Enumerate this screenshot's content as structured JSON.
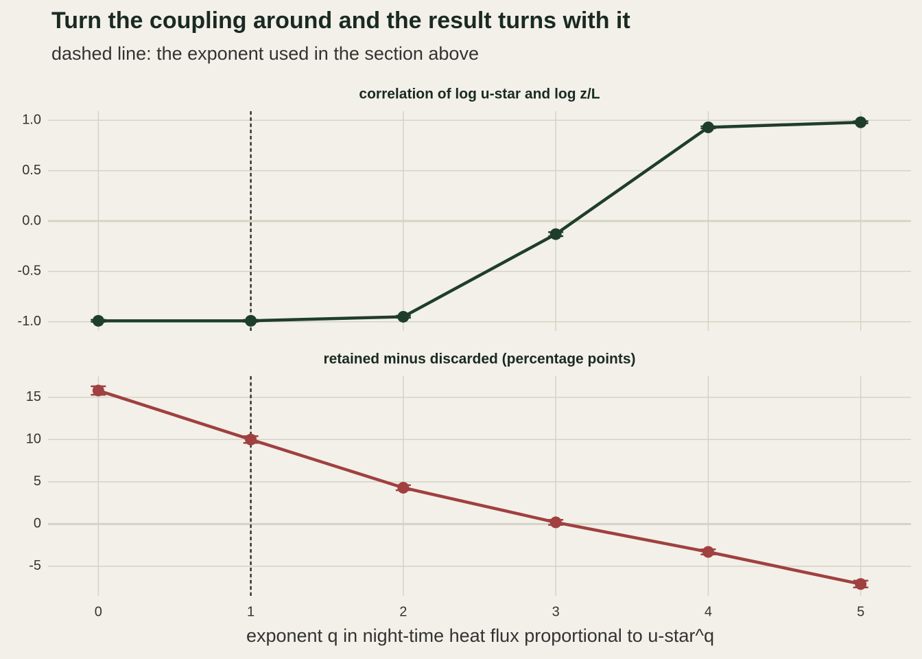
{
  "title": "Turn the coupling around and the result turns with it",
  "subtitle": "dashed line: the exponent used in the section above",
  "x_label": "exponent q in night-time heat flux proportional to u-star^q",
  "chart_data": [
    {
      "type": "line",
      "title": "correlation of log u-star and log z/L",
      "x": [
        0,
        1,
        2,
        3,
        4,
        5
      ],
      "values": [
        -0.99,
        -0.99,
        -0.95,
        -0.13,
        0.93,
        0.98
      ],
      "errors": [
        0.01,
        0.01,
        0.01,
        0.02,
        0.01,
        0.01
      ],
      "color": "#1f3d2b",
      "xlim": [
        -0.33,
        5.33
      ],
      "xticks": [
        0,
        1,
        2,
        3,
        4,
        5
      ],
      "ylim": [
        -1.09,
        1.09
      ],
      "yticks": [
        {
          "value": -1,
          "label": "-1.0"
        },
        -0.5,
        {
          "value": 0,
          "label": "0.0"
        },
        0.5,
        {
          "value": 1,
          "label": "1.0"
        }
      ],
      "vline": 1,
      "grid": true
    },
    {
      "type": "line",
      "title": "retained minus discarded (percentage points)",
      "x": [
        0,
        1,
        2,
        3,
        4,
        5
      ],
      "values": [
        15.8,
        10.0,
        4.3,
        0.2,
        -3.3,
        -7.1
      ],
      "errors": [
        0.5,
        0.4,
        0.3,
        0.3,
        0.3,
        0.4
      ],
      "color": "#a04040",
      "xlim": [
        -0.33,
        5.33
      ],
      "xticks": [
        0,
        1,
        2,
        3,
        4,
        5
      ],
      "ylim": [
        -8.5,
        17.5
      ],
      "yticks": [
        -5,
        0,
        5,
        10,
        15
      ],
      "vline": 1,
      "grid": true
    }
  ]
}
